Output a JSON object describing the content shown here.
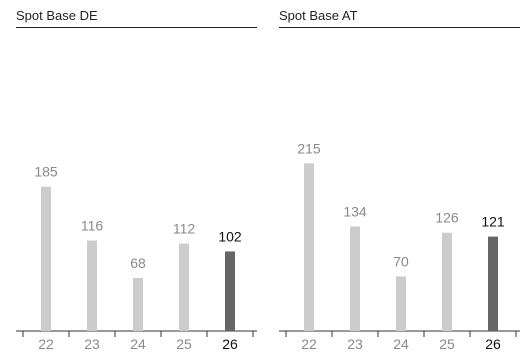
{
  "colors": {
    "past_bar": "#cccccc",
    "current_bar": "#666666",
    "past_text": "#8a8a8a",
    "current_text": "#111111",
    "axis": "#333333"
  },
  "chart_data": [
    {
      "type": "bar",
      "title": "Spot Base DE",
      "categories": [
        "22",
        "23",
        "24",
        "25",
        "26"
      ],
      "values": [
        185,
        116,
        68,
        112,
        102
      ],
      "highlight_category": "26",
      "data_labels": true,
      "xlabel": "",
      "ylabel": "",
      "ylim": [
        0,
        215
      ],
      "grid": false,
      "legend": "none"
    },
    {
      "type": "bar",
      "title": "Spot Base AT",
      "categories": [
        "22",
        "23",
        "24",
        "25",
        "26"
      ],
      "values": [
        215,
        134,
        70,
        126,
        121
      ],
      "highlight_category": "26",
      "data_labels": true,
      "xlabel": "",
      "ylabel": "",
      "ylim": [
        0,
        215
      ],
      "grid": false,
      "legend": "none"
    }
  ]
}
